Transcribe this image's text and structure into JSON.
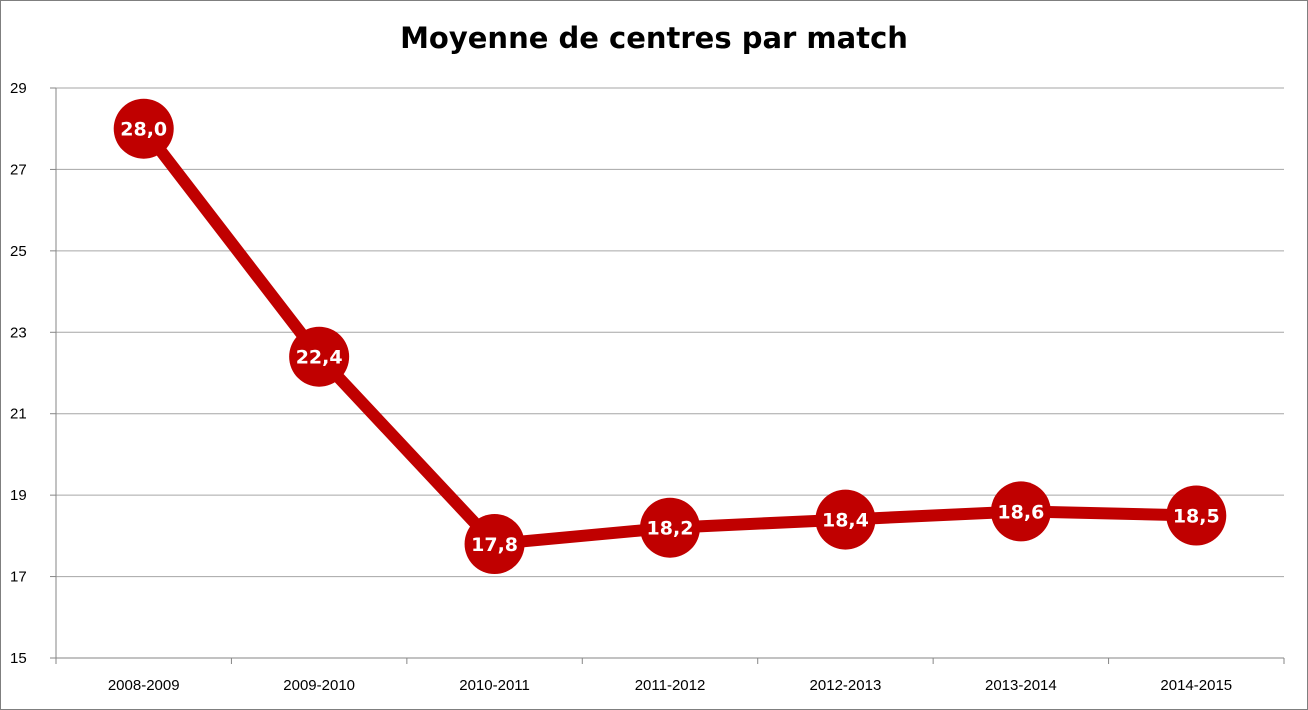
{
  "chart_data": {
    "type": "line",
    "title": "Moyenne de centres par match",
    "categories": [
      "2008-2009",
      "2009-2010",
      "2010-2011",
      "2011-2012",
      "2012-2013",
      "2013-2014",
      "2014-2015"
    ],
    "series": [
      {
        "values": [
          28.0,
          22.4,
          17.8,
          18.2,
          18.4,
          18.6,
          18.5
        ],
        "labels": [
          "28,0",
          "22,4",
          "17,8",
          "18,2",
          "18,4",
          "18,6",
          "18,5"
        ],
        "color": "#c00000"
      }
    ],
    "ylim": [
      15,
      29
    ],
    "yticks": [
      "15",
      "17",
      "19",
      "21",
      "23",
      "25",
      "27",
      "29"
    ],
    "grid": true,
    "legend": "none",
    "xlabel": "",
    "ylabel": ""
  },
  "colors": {
    "gridline": "#a6a6a6",
    "axis": "#868686",
    "series": "#c00000"
  }
}
